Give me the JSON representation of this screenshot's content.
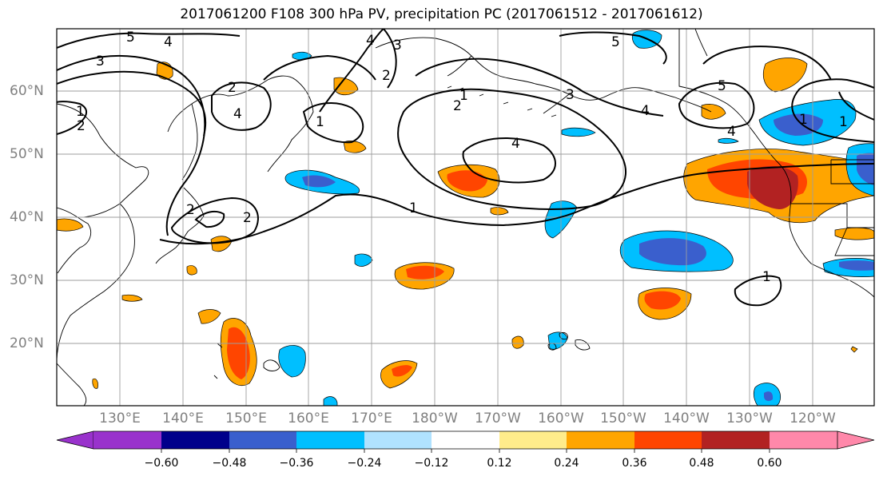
{
  "title": "2017061200 F108 300 hPa PV, precipitation PC (2017061512 - 2017061612)",
  "lat_labels": [
    "60°N",
    "50°N",
    "40°N",
    "30°N",
    "20°N"
  ],
  "lon_labels": [
    "130°E",
    "140°E",
    "150°E",
    "160°E",
    "170°E",
    "180°W",
    "170°W",
    "160°W",
    "150°W",
    "140°W",
    "130°W",
    "120°W"
  ],
  "colorbar": {
    "colors": [
      "#9932CC",
      "#00008B",
      "#3A5FCD",
      "#00BFFF",
      "#B0E2FF",
      "#FFFFFF",
      "#FFEC8B",
      "#FFA500",
      "#FF4500",
      "#B22222",
      "#FF88AA"
    ],
    "ticks": [
      "−0.60",
      "−0.48",
      "−0.36",
      "−0.24",
      "−0.12",
      "0.12",
      "0.24",
      "0.36",
      "0.48",
      "0.60"
    ]
  },
  "contour_labels": [
    "5",
    "4",
    "3",
    "4",
    "3",
    "2",
    "1",
    "2",
    "5",
    "3",
    "1",
    "2",
    "4",
    "4",
    "5",
    "4",
    "1",
    "2",
    "1",
    "2",
    "1",
    "4",
    "2",
    "1",
    "1"
  ]
}
